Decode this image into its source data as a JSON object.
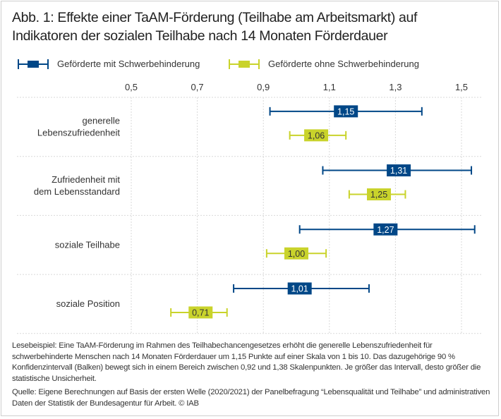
{
  "title_line1": "Abb. 1: Effekte einer TaAM-Förderung (Teilhabe am Arbeitsmarkt) auf",
  "title_line2": "Indikatoren der sozialen Teilhabe nach 14 Monaten Förderdauer",
  "colors": {
    "with": "#004787",
    "without": "#c9d32b",
    "grid": "#d9d9d9",
    "label_on_with": "#ffffff",
    "label_on_without": "#333333"
  },
  "legend": [
    {
      "label": "Geförderte mit Schwerbehinderung",
      "series": "with"
    },
    {
      "label": "Geförderte ohne Schwerbehinderung",
      "series": "without"
    }
  ],
  "footnote": {
    "reading_example": "Lesebeispiel: Eine TaAM-Förderung im Rahmen des Teilhabechancengesetzes erhöht die generelle Lebenszufriedenheit für schwerbehinderte Menschen nach 14 Monaten Förderdauer um 1,15 Punkte auf einer Skala von 1 bis 10. Das dazugehörige 90 % Konfidenzintervall (Balken) bewegt sich in einem Bereich zwischen 0,92 und 1,38 Skalenpunkten. Je größer das Intervall, desto größer die statistische Unsicherheit.",
    "source": "Quelle: Eigene Berechnungen auf Basis der ersten Welle (2020/2021) der Panelbefragung “Lebensqualität und Teilhabe” und administrativen Daten der Statistik der Bundesagentur für Arbeit.  © IAB"
  },
  "chart_data": {
    "type": "errorbar",
    "orientation": "horizontal",
    "title": "Abb. 1: Effekte einer TaAM-Förderung (Teilhabe am Arbeitsmarkt) auf Indikatoren der sozialen Teilhabe nach 14 Monaten Förderdauer",
    "xlabel": "",
    "ylabel": "",
    "xlim": [
      0.5,
      1.56
    ],
    "xticks": [
      0.5,
      0.7,
      0.9,
      1.1,
      1.3,
      1.5
    ],
    "xtick_labels": [
      "0,5",
      "0,7",
      "0,9",
      "1,1",
      "1,3",
      "1,5"
    ],
    "grid": true,
    "legend_position": "top-left",
    "categories": [
      [
        "generelle",
        "Lebenszufriedenheit"
      ],
      [
        "Zufriedenheit mit",
        "dem Lebensstandard"
      ],
      [
        "soziale Teilhabe"
      ],
      [
        "soziale Position"
      ]
    ],
    "series": [
      {
        "name": "Geförderte mit Schwerbehinderung",
        "key": "with",
        "values": [
          1.15,
          1.31,
          1.27,
          1.01
        ],
        "value_labels": [
          "1,15",
          "1,31",
          "1,27",
          "1,01"
        ],
        "ci_low": [
          0.92,
          1.08,
          1.01,
          0.81
        ],
        "ci_high": [
          1.38,
          1.53,
          1.54,
          1.22
        ]
      },
      {
        "name": "Geförderte ohne Schwerbehinderung",
        "key": "without",
        "values": [
          1.06,
          1.25,
          1.0,
          0.71
        ],
        "value_labels": [
          "1,06",
          "1,25",
          "1,00",
          "0,71"
        ],
        "ci_low": [
          0.98,
          1.16,
          0.91,
          0.62
        ],
        "ci_high": [
          1.15,
          1.33,
          1.09,
          0.79
        ]
      }
    ]
  }
}
